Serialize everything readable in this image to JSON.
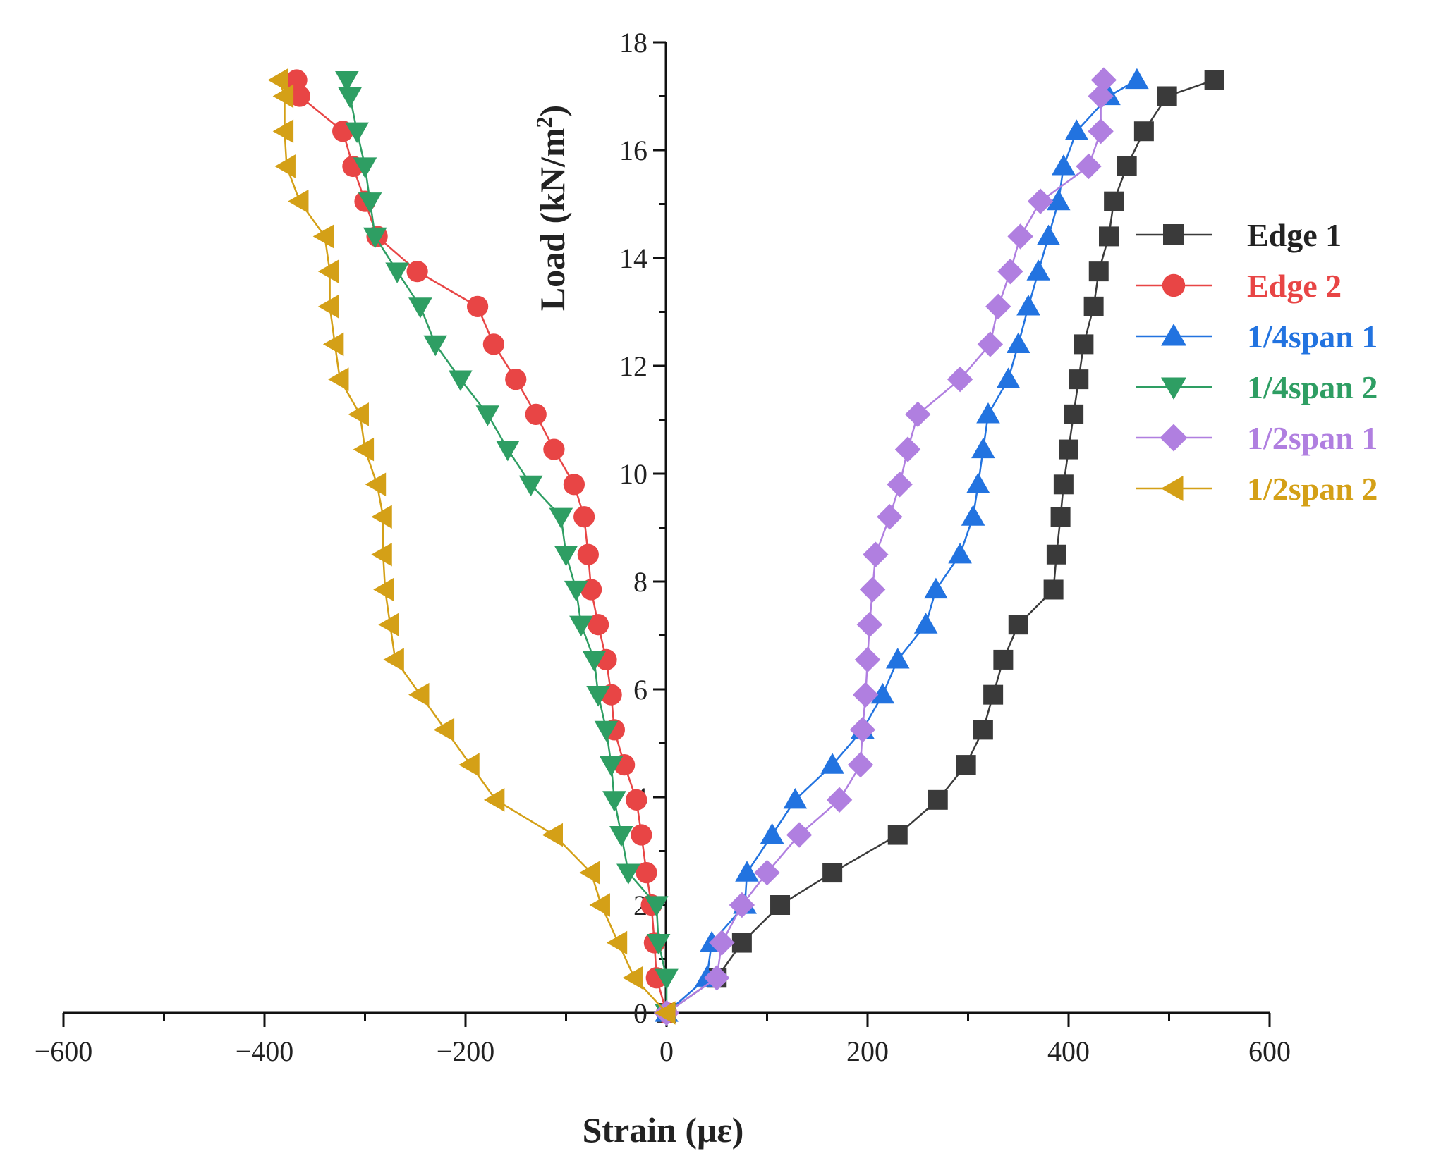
{
  "chart_data": {
    "type": "line",
    "title": "",
    "xlabel": "Strain (με)",
    "ylabel": "Load (kN/m²)",
    "ylabel_main": "Load (kN/m",
    "ylabel_sup": "2",
    "ylabel_end": ")",
    "xlim": [
      -600,
      600
    ],
    "ylim": [
      0,
      18
    ],
    "x_ticks": [
      -600,
      -400,
      -200,
      0,
      200,
      400,
      600
    ],
    "y_ticks": [
      0,
      2,
      4,
      6,
      8,
      10,
      12,
      14,
      16,
      18
    ],
    "legend_position": "right",
    "series": [
      {
        "name": "Edge 1",
        "color": "#3a3a3a",
        "marker": "square",
        "points": [
          [
            0,
            0
          ],
          [
            50,
            0.65
          ],
          [
            75,
            1.3
          ],
          [
            113,
            2
          ],
          [
            165,
            2.6
          ],
          [
            230,
            3.3
          ],
          [
            270,
            3.95
          ],
          [
            298,
            4.6
          ],
          [
            315,
            5.25
          ],
          [
            325,
            5.9
          ],
          [
            335,
            6.55
          ],
          [
            350,
            7.2
          ],
          [
            385,
            7.85
          ],
          [
            388,
            8.5
          ],
          [
            392,
            9.2
          ],
          [
            395,
            9.8
          ],
          [
            400,
            10.45
          ],
          [
            405,
            11.1
          ],
          [
            410,
            11.75
          ],
          [
            415,
            12.4
          ],
          [
            425,
            13.1
          ],
          [
            430,
            13.75
          ],
          [
            440,
            14.4
          ],
          [
            445,
            15.05
          ],
          [
            458,
            15.7
          ],
          [
            475,
            16.35
          ],
          [
            498,
            17.0
          ],
          [
            545,
            17.3
          ]
        ]
      },
      {
        "name": "Edge 2",
        "color": "#e84545",
        "marker": "circle",
        "points": [
          [
            0,
            0
          ],
          [
            -10,
            0.65
          ],
          [
            -12,
            1.3
          ],
          [
            -15,
            2
          ],
          [
            -20,
            2.6
          ],
          [
            -25,
            3.3
          ],
          [
            -30,
            3.95
          ],
          [
            -42,
            4.6
          ],
          [
            -52,
            5.25
          ],
          [
            -55,
            5.9
          ],
          [
            -60,
            6.55
          ],
          [
            -68,
            7.2
          ],
          [
            -75,
            7.85
          ],
          [
            -78,
            8.5
          ],
          [
            -82,
            9.2
          ],
          [
            -92,
            9.8
          ],
          [
            -112,
            10.45
          ],
          [
            -130,
            11.1
          ],
          [
            -150,
            11.75
          ],
          [
            -172,
            12.4
          ],
          [
            -188,
            13.1
          ],
          [
            -248,
            13.75
          ],
          [
            -288,
            14.4
          ],
          [
            -300,
            15.05
          ],
          [
            -312,
            15.7
          ],
          [
            -322,
            16.35
          ],
          [
            -365,
            17.0
          ],
          [
            -368,
            17.3
          ]
        ]
      },
      {
        "name": "1/4span 1",
        "color": "#2273e0",
        "marker": "triangle-up",
        "points": [
          [
            0,
            0
          ],
          [
            40,
            0.65
          ],
          [
            45,
            1.3
          ],
          [
            78,
            2
          ],
          [
            80,
            2.6
          ],
          [
            105,
            3.3
          ],
          [
            128,
            3.95
          ],
          [
            165,
            4.6
          ],
          [
            195,
            5.25
          ],
          [
            215,
            5.9
          ],
          [
            230,
            6.55
          ],
          [
            258,
            7.2
          ],
          [
            268,
            7.85
          ],
          [
            292,
            8.5
          ],
          [
            305,
            9.2
          ],
          [
            310,
            9.8
          ],
          [
            315,
            10.45
          ],
          [
            320,
            11.1
          ],
          [
            340,
            11.75
          ],
          [
            350,
            12.4
          ],
          [
            360,
            13.1
          ],
          [
            370,
            13.75
          ],
          [
            380,
            14.4
          ],
          [
            390,
            15.05
          ],
          [
            395,
            15.7
          ],
          [
            408,
            16.35
          ],
          [
            440,
            17.0
          ],
          [
            468,
            17.3
          ]
        ]
      },
      {
        "name": "1/4span 2",
        "color": "#2e9e63",
        "marker": "triangle-down",
        "points": [
          [
            0,
            0
          ],
          [
            0,
            0.65
          ],
          [
            -8,
            1.3
          ],
          [
            -10,
            2
          ],
          [
            -38,
            2.6
          ],
          [
            -45,
            3.3
          ],
          [
            -52,
            3.95
          ],
          [
            -55,
            4.6
          ],
          [
            -60,
            5.25
          ],
          [
            -68,
            5.9
          ],
          [
            -72,
            6.55
          ],
          [
            -85,
            7.2
          ],
          [
            -90,
            7.85
          ],
          [
            -100,
            8.5
          ],
          [
            -105,
            9.2
          ],
          [
            -135,
            9.8
          ],
          [
            -158,
            10.45
          ],
          [
            -178,
            11.1
          ],
          [
            -205,
            11.75
          ],
          [
            -230,
            12.4
          ],
          [
            -245,
            13.1
          ],
          [
            -268,
            13.75
          ],
          [
            -290,
            14.4
          ],
          [
            -295,
            15.05
          ],
          [
            -300,
            15.7
          ],
          [
            -308,
            16.35
          ],
          [
            -315,
            17.0
          ],
          [
            -318,
            17.3
          ]
        ]
      },
      {
        "name": "1/2span 1",
        "color": "#b07fe0",
        "marker": "diamond",
        "points": [
          [
            0,
            0
          ],
          [
            50,
            0.65
          ],
          [
            55,
            1.3
          ],
          [
            75,
            2
          ],
          [
            100,
            2.6
          ],
          [
            132,
            3.3
          ],
          [
            172,
            3.95
          ],
          [
            193,
            4.6
          ],
          [
            195,
            5.25
          ],
          [
            198,
            5.9
          ],
          [
            200,
            6.55
          ],
          [
            202,
            7.2
          ],
          [
            205,
            7.85
          ],
          [
            208,
            8.5
          ],
          [
            222,
            9.2
          ],
          [
            232,
            9.8
          ],
          [
            240,
            10.45
          ],
          [
            250,
            11.1
          ],
          [
            292,
            11.75
          ],
          [
            322,
            12.4
          ],
          [
            330,
            13.1
          ],
          [
            342,
            13.75
          ],
          [
            352,
            14.4
          ],
          [
            372,
            15.05
          ],
          [
            420,
            15.7
          ],
          [
            432,
            16.35
          ],
          [
            432,
            17.0
          ],
          [
            435,
            17.3
          ]
        ]
      },
      {
        "name": "1/2span 2",
        "color": "#d4a017",
        "marker": "triangle-left",
        "points": [
          [
            0,
            0
          ],
          [
            -32,
            0.65
          ],
          [
            -48,
            1.3
          ],
          [
            -65,
            2
          ],
          [
            -75,
            2.6
          ],
          [
            -112,
            3.3
          ],
          [
            -170,
            3.95
          ],
          [
            -195,
            4.6
          ],
          [
            -220,
            5.25
          ],
          [
            -245,
            5.9
          ],
          [
            -270,
            6.55
          ],
          [
            -275,
            7.2
          ],
          [
            -280,
            7.85
          ],
          [
            -282,
            8.5
          ],
          [
            -282,
            9.2
          ],
          [
            -288,
            9.8
          ],
          [
            -300,
            10.45
          ],
          [
            -305,
            11.1
          ],
          [
            -325,
            11.75
          ],
          [
            -330,
            12.4
          ],
          [
            -335,
            13.1
          ],
          [
            -335,
            13.75
          ],
          [
            -340,
            14.4
          ],
          [
            -365,
            15.05
          ],
          [
            -378,
            15.7
          ],
          [
            -380,
            16.35
          ],
          [
            -380,
            17.0
          ],
          [
            -385,
            17.3
          ]
        ]
      }
    ]
  }
}
